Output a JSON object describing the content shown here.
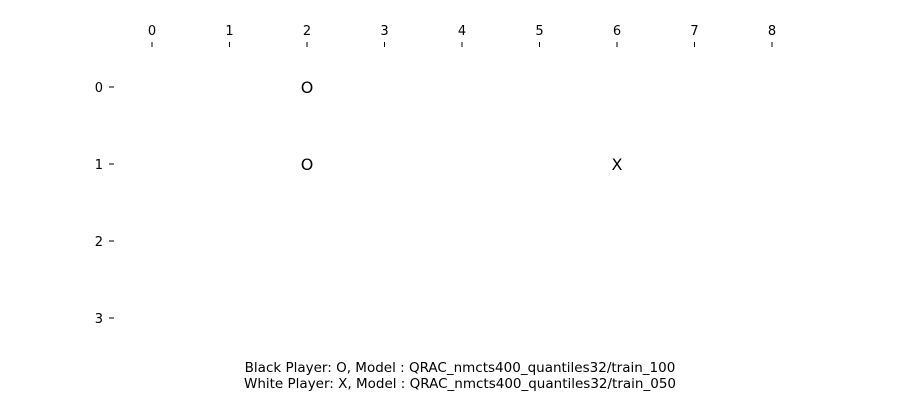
{
  "board": {
    "col_labels": [
      "0",
      "1",
      "2",
      "3",
      "4",
      "5",
      "6",
      "7",
      "8"
    ],
    "row_labels": [
      "0",
      "1",
      "2",
      "3"
    ],
    "stones": [
      {
        "row": 0,
        "col": 2,
        "symbol": "O"
      },
      {
        "row": 1,
        "col": 2,
        "symbol": "O"
      },
      {
        "row": 1,
        "col": 6,
        "symbol": "X"
      }
    ]
  },
  "players": {
    "black_line": "Black Player: O, Model : QRAC_nmcts400_quantiles32/train_100",
    "white_line": "White Player: X, Model : QRAC_nmcts400_quantiles32/train_050"
  }
}
